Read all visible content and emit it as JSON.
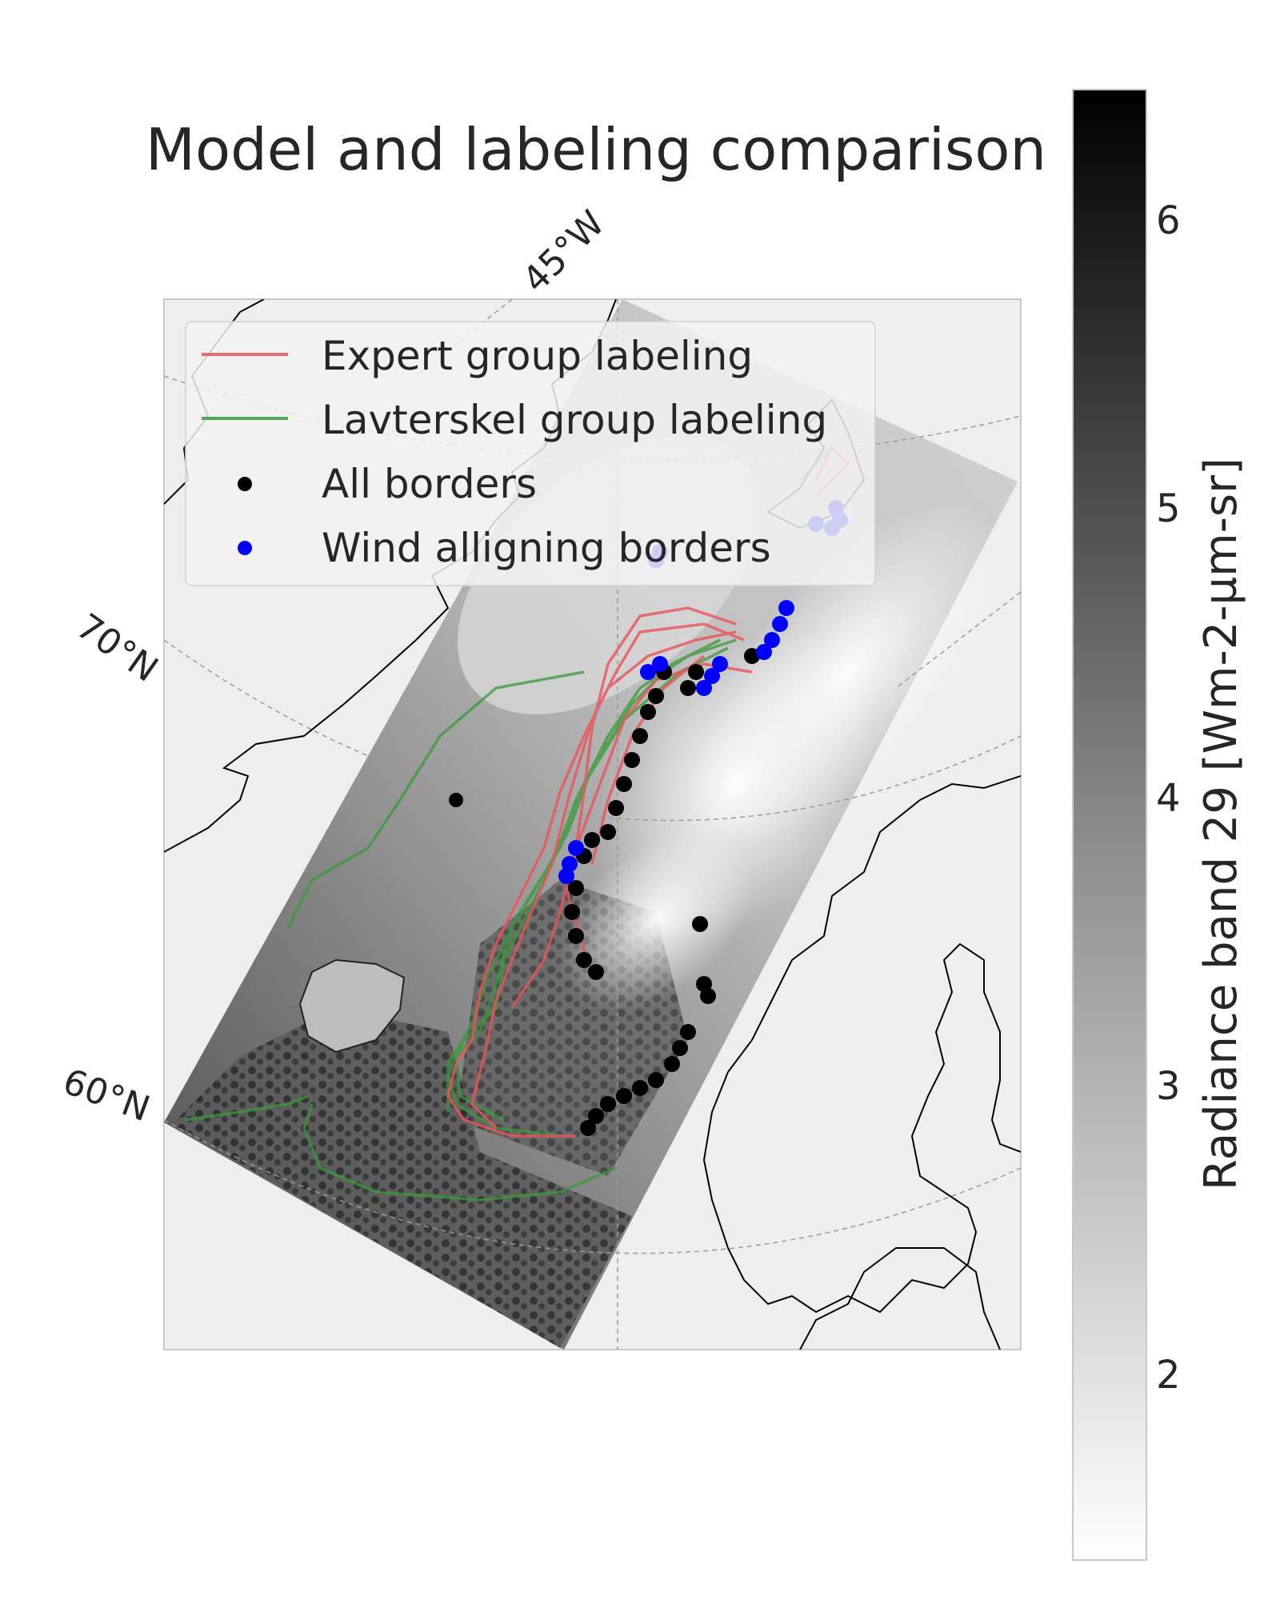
{
  "figure": {
    "title": "Model and labeling comparison"
  },
  "map": {
    "lon_labels": [
      "45°W"
    ],
    "lat_labels": [
      "70°N",
      "60°N"
    ]
  },
  "legend": {
    "items": [
      {
        "label": "Expert group labeling",
        "color": "#e8555a",
        "kind": "line"
      },
      {
        "label": "Lavterskel group labeling",
        "color": "#3a9a3a",
        "kind": "line"
      },
      {
        "label": "All borders",
        "color": "#000000",
        "kind": "dot"
      },
      {
        "label": "Wind alligning borders",
        "color": "#0000ff",
        "kind": "dot"
      }
    ]
  },
  "colorbar": {
    "label": "Radiance band 29 [Wm-2-µm-sr]",
    "ticks": [
      "6",
      "5",
      "4",
      "3",
      "2"
    ],
    "cmap_from": "#ffffff",
    "cmap_to": "#000000"
  },
  "colors": {
    "land": "#eeeeee",
    "coastline": "#000000",
    "expert": "#e8555a",
    "lavterskel": "#3a9a3a",
    "all_borders": "#000000",
    "wind_borders": "#0000ff"
  }
}
